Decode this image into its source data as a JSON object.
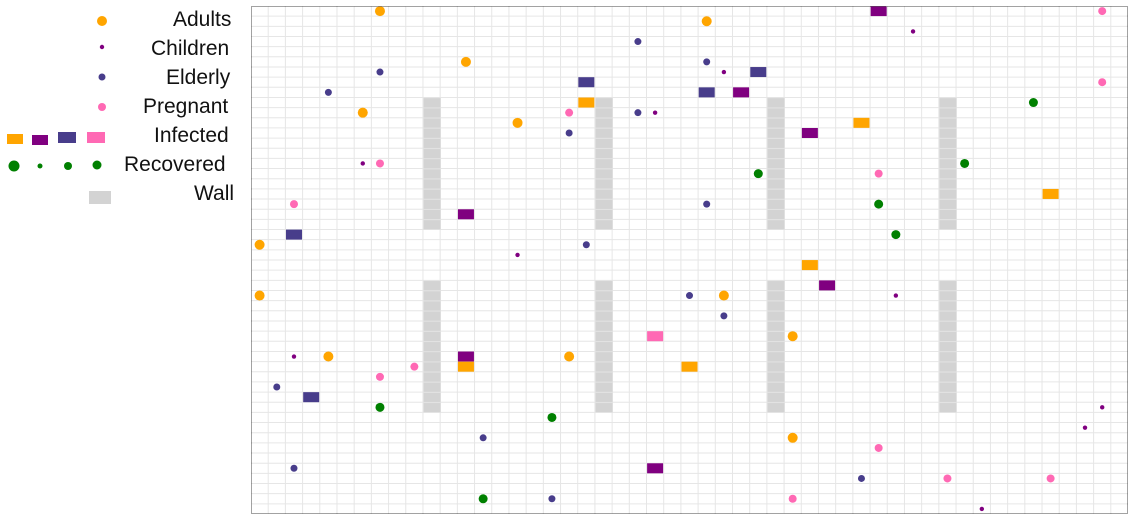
{
  "legend": {
    "adults": "Adults",
    "children": "Children",
    "elderly": "Elderly",
    "pregnant": "Pregnant",
    "infected": "Infected",
    "recovered": "Recovered",
    "wall": "Wall"
  },
  "colors": {
    "adults": "#ffa500",
    "children": "#800080",
    "elderly": "#483d8b",
    "pregnant": "#ff69b4",
    "recovered": "#008000",
    "wall": "#d3d3d3",
    "grid": "#e6e6e6",
    "border": "#444444"
  },
  "grid": {
    "cols": 51,
    "rows": 50
  },
  "walls": [
    {
      "col": 10,
      "rows": [
        9,
        21
      ]
    },
    {
      "col": 20,
      "rows": [
        9,
        21
      ]
    },
    {
      "col": 30,
      "rows": [
        9,
        21
      ]
    },
    {
      "col": 40,
      "rows": [
        9,
        21
      ]
    },
    {
      "col": 10,
      "rows": [
        27,
        39
      ]
    },
    {
      "col": 20,
      "rows": [
        27,
        39
      ]
    },
    {
      "col": 30,
      "rows": [
        27,
        39
      ]
    },
    {
      "col": 40,
      "rows": [
        27,
        39
      ]
    }
  ],
  "agents": [
    {
      "type": "adults",
      "col": 7.5,
      "row": 0.5
    },
    {
      "type": "adults",
      "col": 26.5,
      "row": 1.5
    },
    {
      "type": "adults",
      "col": 12.5,
      "row": 5.5
    },
    {
      "type": "adults",
      "col": 6.5,
      "row": 10.5
    },
    {
      "type": "adults",
      "col": 15.5,
      "row": 11.5
    },
    {
      "type": "adults",
      "col": 0.5,
      "row": 23.5
    },
    {
      "type": "adults",
      "col": 0.5,
      "row": 28.5
    },
    {
      "type": "adults",
      "col": 27.5,
      "row": 28.5
    },
    {
      "type": "adults",
      "col": 31.5,
      "row": 32.5
    },
    {
      "type": "adults",
      "col": 4.5,
      "row": 34.5
    },
    {
      "type": "adults",
      "col": 18.5,
      "row": 34.5
    },
    {
      "type": "adults",
      "col": 31.5,
      "row": 42.5
    },
    {
      "type": "children",
      "col": 38.5,
      "row": 2.5
    },
    {
      "type": "children",
      "col": 27.5,
      "row": 6.5
    },
    {
      "type": "children",
      "col": 23.5,
      "row": 10.5
    },
    {
      "type": "children",
      "col": 6.5,
      "row": 15.5
    },
    {
      "type": "children",
      "col": 15.5,
      "row": 24.5
    },
    {
      "type": "children",
      "col": 37.5,
      "row": 28.5
    },
    {
      "type": "children",
      "col": 2.5,
      "row": 34.5
    },
    {
      "type": "children",
      "col": 49.5,
      "row": 39.5
    },
    {
      "type": "children",
      "col": 48.5,
      "row": 41.5
    },
    {
      "type": "children",
      "col": 42.5,
      "row": 49.5
    },
    {
      "type": "elderly",
      "col": 22.5,
      "row": 3.5
    },
    {
      "type": "elderly",
      "col": 7.5,
      "row": 6.5
    },
    {
      "type": "elderly",
      "col": 26.5,
      "row": 5.5
    },
    {
      "type": "elderly",
      "col": 4.5,
      "row": 8.5
    },
    {
      "type": "elderly",
      "col": 22.5,
      "row": 10.5
    },
    {
      "type": "elderly",
      "col": 18.5,
      "row": 12.5
    },
    {
      "type": "elderly",
      "col": 26.5,
      "row": 19.5
    },
    {
      "type": "elderly",
      "col": 19.5,
      "row": 23.5
    },
    {
      "type": "elderly",
      "col": 25.5,
      "row": 28.5
    },
    {
      "type": "elderly",
      "col": 27.5,
      "row": 30.5
    },
    {
      "type": "elderly",
      "col": 1.5,
      "row": 37.5
    },
    {
      "type": "elderly",
      "col": 13.5,
      "row": 42.5
    },
    {
      "type": "elderly",
      "col": 2.5,
      "row": 45.5
    },
    {
      "type": "elderly",
      "col": 35.5,
      "row": 46.5
    },
    {
      "type": "elderly",
      "col": 17.5,
      "row": 48.5
    },
    {
      "type": "pregnant",
      "col": 49.5,
      "row": 0.5
    },
    {
      "type": "pregnant",
      "col": 49.5,
      "row": 7.5
    },
    {
      "type": "pregnant",
      "col": 18.5,
      "row": 10.5
    },
    {
      "type": "pregnant",
      "col": 7.5,
      "row": 15.5
    },
    {
      "type": "pregnant",
      "col": 36.5,
      "row": 16.5
    },
    {
      "type": "pregnant",
      "col": 2.5,
      "row": 19.5
    },
    {
      "type": "pregnant",
      "col": 23.5,
      "row": 32.5
    },
    {
      "type": "pregnant",
      "col": 9.5,
      "row": 35.5
    },
    {
      "type": "pregnant",
      "col": 7.5,
      "row": 36.5
    },
    {
      "type": "pregnant",
      "col": 36.5,
      "row": 43.5
    },
    {
      "type": "pregnant",
      "col": 40.5,
      "row": 46.5
    },
    {
      "type": "pregnant",
      "col": 46.5,
      "row": 46.5
    },
    {
      "type": "pregnant",
      "col": 31.5,
      "row": 48.5
    },
    {
      "type": "recovered",
      "col": 45.5,
      "row": 9.5
    },
    {
      "type": "recovered",
      "col": 41.5,
      "row": 15.5
    },
    {
      "type": "recovered",
      "col": 29.5,
      "row": 16.5
    },
    {
      "type": "recovered",
      "col": 36.5,
      "row": 19.5
    },
    {
      "type": "recovered",
      "col": 37.5,
      "row": 22.5
    },
    {
      "type": "recovered",
      "col": 7.5,
      "row": 39.5
    },
    {
      "type": "recovered",
      "col": 17.5,
      "row": 40.5
    },
    {
      "type": "recovered",
      "col": 13.5,
      "row": 48.5
    }
  ],
  "infected": [
    {
      "type": "children",
      "col": 36.5,
      "row": 0.5
    },
    {
      "type": "elderly",
      "col": 29.5,
      "row": 6.5
    },
    {
      "type": "elderly",
      "col": 19.5,
      "row": 7.5
    },
    {
      "type": "elderly",
      "col": 26.5,
      "row": 8.5
    },
    {
      "type": "children",
      "col": 28.5,
      "row": 8.5
    },
    {
      "type": "adults",
      "col": 19.5,
      "row": 9.5
    },
    {
      "type": "adults",
      "col": 35.5,
      "row": 11.5
    },
    {
      "type": "children",
      "col": 32.5,
      "row": 12.5
    },
    {
      "type": "adults",
      "col": 46.5,
      "row": 18.5
    },
    {
      "type": "children",
      "col": 12.5,
      "row": 20.5
    },
    {
      "type": "elderly",
      "col": 2.5,
      "row": 22.5
    },
    {
      "type": "adults",
      "col": 32.5,
      "row": 25.5
    },
    {
      "type": "children",
      "col": 33.5,
      "row": 27.5
    },
    {
      "type": "pregnant",
      "col": 23.5,
      "row": 32.5
    },
    {
      "type": "children",
      "col": 12.5,
      "row": 34.5
    },
    {
      "type": "adults",
      "col": 12.5,
      "row": 35.5
    },
    {
      "type": "adults",
      "col": 25.5,
      "row": 35.5
    },
    {
      "type": "elderly",
      "col": 3.5,
      "row": 38.5
    },
    {
      "type": "children",
      "col": 23.5,
      "row": 45.5
    }
  ]
}
